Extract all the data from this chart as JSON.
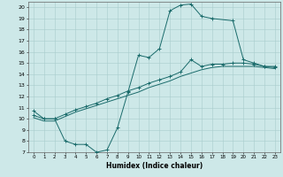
{
  "xlabel": "Humidex (Indice chaleur)",
  "bg_color": "#cde8e8",
  "line_color": "#1a6b6b",
  "grid_color": "#a8cccc",
  "xlim": [
    -0.5,
    23.5
  ],
  "ylim": [
    7,
    20.5
  ],
  "yticks": [
    7,
    8,
    9,
    10,
    11,
    12,
    13,
    14,
    15,
    16,
    17,
    18,
    19,
    20
  ],
  "xticks": [
    0,
    1,
    2,
    3,
    4,
    5,
    6,
    7,
    8,
    9,
    10,
    11,
    12,
    13,
    14,
    15,
    16,
    17,
    18,
    19,
    20,
    21,
    22,
    23
  ],
  "upper_x": [
    0,
    1,
    2,
    3,
    4,
    5,
    6,
    7,
    8,
    9,
    10,
    11,
    12,
    13,
    14,
    15,
    16,
    17,
    19,
    20,
    21,
    22,
    23
  ],
  "upper_y": [
    10.7,
    10.0,
    10.0,
    8.0,
    7.7,
    7.7,
    7.0,
    7.2,
    9.2,
    12.4,
    15.7,
    15.5,
    16.3,
    19.7,
    20.2,
    20.3,
    19.2,
    19.0,
    18.8,
    15.3,
    15.0,
    14.7,
    14.7
  ],
  "mid_x": [
    0,
    1,
    2,
    3,
    4,
    5,
    6,
    7,
    8,
    9,
    10,
    11,
    12,
    13,
    14,
    15,
    16,
    17,
    18,
    19,
    20,
    21,
    22,
    23
  ],
  "mid_y": [
    10.3,
    10.0,
    10.0,
    10.4,
    10.8,
    11.1,
    11.4,
    11.8,
    12.1,
    12.5,
    12.8,
    13.2,
    13.5,
    13.8,
    14.2,
    15.3,
    14.7,
    14.9,
    14.9,
    15.0,
    15.0,
    14.9,
    14.7,
    14.6
  ],
  "lower_x": [
    0,
    1,
    2,
    3,
    4,
    5,
    6,
    7,
    8,
    9,
    10,
    11,
    12,
    13,
    14,
    15,
    16,
    17,
    18,
    19,
    20,
    21,
    22,
    23
  ],
  "lower_y": [
    10.1,
    9.8,
    9.8,
    10.2,
    10.6,
    10.9,
    11.2,
    11.5,
    11.8,
    12.1,
    12.4,
    12.8,
    13.1,
    13.4,
    13.8,
    14.1,
    14.4,
    14.6,
    14.7,
    14.7,
    14.7,
    14.7,
    14.6,
    14.5
  ]
}
